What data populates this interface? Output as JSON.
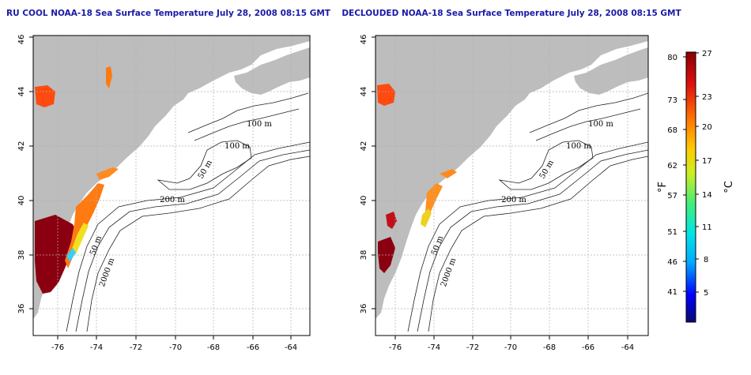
{
  "panels": [
    {
      "id": "rucool",
      "title": "RU COOL NOAA-18 Sea Surface Temperature July 28, 2008 08:15 GMT",
      "variant": "full"
    },
    {
      "id": "declouded",
      "title": "DECLOUDED NOAA-18 Sea Surface Temperature July 28, 2008 08:15 GMT",
      "variant": "declouded"
    }
  ],
  "map": {
    "lon_range": [
      -77,
      -63
    ],
    "lat_range": [
      35,
      46
    ],
    "lon_ticks": [
      "-76",
      "-74",
      "-72",
      "-70",
      "-68",
      "-66",
      "-64"
    ],
    "lat_ticks": [
      "36",
      "38",
      "40",
      "42",
      "44",
      "46"
    ],
    "grid": true,
    "land_color": "#bdbdbd",
    "contour_labels": [
      "100 m",
      "100 m",
      "50 m",
      "200 m",
      "50 m",
      "2000 m"
    ]
  },
  "colorbar": {
    "fahrenheit_label": "°F",
    "celsius_label": "°C",
    "fahrenheit_ticks": [
      "80",
      "73",
      "68",
      "62",
      "57",
      "51",
      "46",
      "41"
    ],
    "celsius_ticks": [
      "27",
      "23",
      "20",
      "17",
      "14",
      "11",
      "8",
      "5"
    ],
    "stops": [
      "#0a0a6e",
      "#0000ff",
      "#00aaff",
      "#00e5e5",
      "#44ee77",
      "#ccee22",
      "#ffcc00",
      "#ff7700",
      "#e01010",
      "#8a0000"
    ]
  },
  "sst_colors": {
    "warm": "#8a0010",
    "hot": "#c0101a",
    "orange": "#ff7a10",
    "amber": "#ffb020",
    "yellow": "#f0e020",
    "cyan": "#30d0ff",
    "green": "#60d860"
  }
}
